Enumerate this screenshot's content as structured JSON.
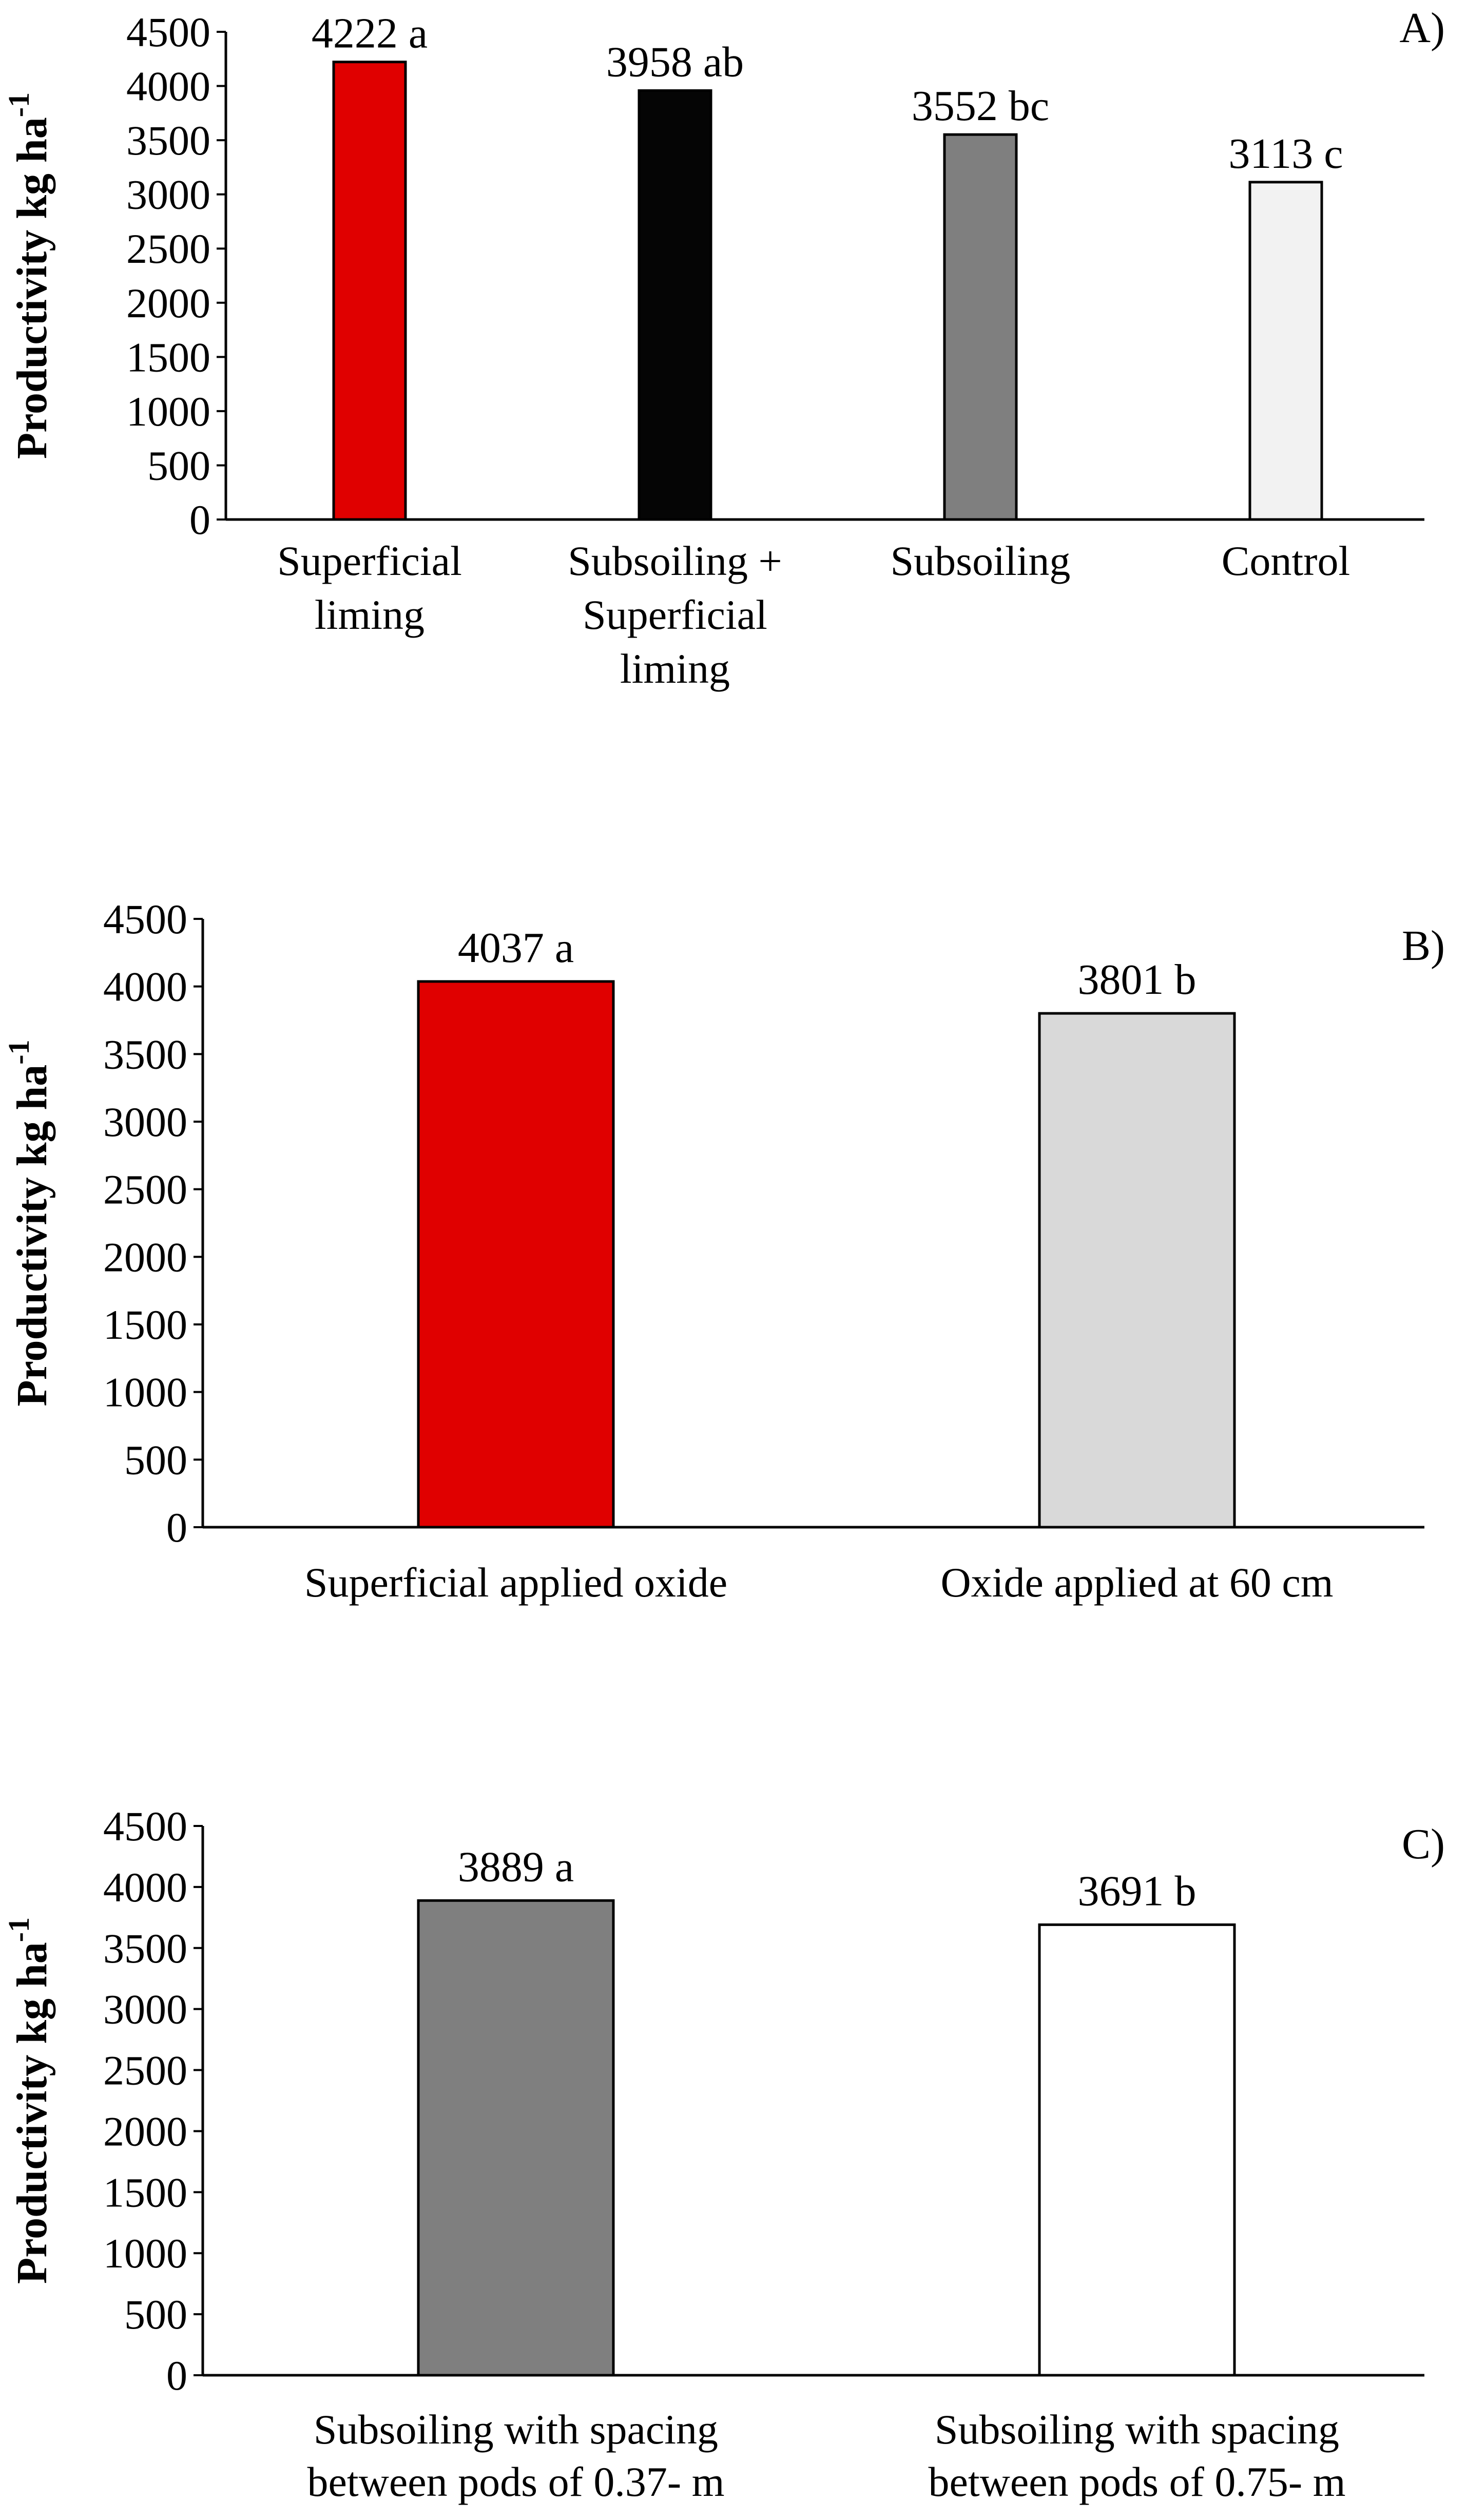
{
  "chart_data": [
    {
      "type": "bar",
      "panel_label": "A)",
      "title": "",
      "ylabel": "Productivity kg ha",
      "ylabel_superscript": "-1",
      "ylim": [
        0,
        4500
      ],
      "yticks": [
        0,
        500,
        1000,
        1500,
        2000,
        2500,
        3000,
        3500,
        4000,
        4500
      ],
      "categories": [
        [
          "Superficial",
          "liming"
        ],
        [
          "Subsoiling +",
          "Superficial",
          "liming"
        ],
        [
          "Subsoiling"
        ],
        [
          "Control"
        ]
      ],
      "values": [
        4222,
        3958,
        3552,
        3113
      ],
      "data_labels": [
        "4222 a",
        "3958 ab",
        "3552 bc",
        "3113 c"
      ],
      "colors": [
        "#e00000",
        "#050505",
        "#7f7f7f",
        "#f2f2f2"
      ]
    },
    {
      "type": "bar",
      "panel_label": "B)",
      "title": "",
      "ylabel": "Productivity  kg ha",
      "ylabel_superscript": "-1",
      "ylim": [
        0,
        4500
      ],
      "yticks": [
        0,
        500,
        1000,
        1500,
        2000,
        2500,
        3000,
        3500,
        4000,
        4500
      ],
      "categories": [
        [
          "Superficial applied oxide"
        ],
        [
          "Oxide applied at 60 cm"
        ]
      ],
      "values": [
        4037,
        3801
      ],
      "data_labels": [
        "4037 a",
        "3801 b"
      ],
      "colors": [
        "#e00000",
        "#d9d9d9"
      ]
    },
    {
      "type": "bar",
      "panel_label": "C)",
      "title": "",
      "ylabel": "Productivity kg ha",
      "ylabel_superscript": "-1",
      "ylim": [
        0,
        4500
      ],
      "yticks": [
        0,
        500,
        1000,
        1500,
        2000,
        2500,
        3000,
        3500,
        4000,
        4500
      ],
      "categories": [
        [
          "Subsoiling with spacing",
          "between pods of 0.37- m"
        ],
        [
          "Subsoiling with spacing",
          "between pods of 0.75- m"
        ]
      ],
      "values": [
        3889,
        3691
      ],
      "data_labels": [
        "3889 a",
        "3691 b"
      ],
      "colors": [
        "#7f7f7f",
        "#ffffff"
      ]
    }
  ]
}
